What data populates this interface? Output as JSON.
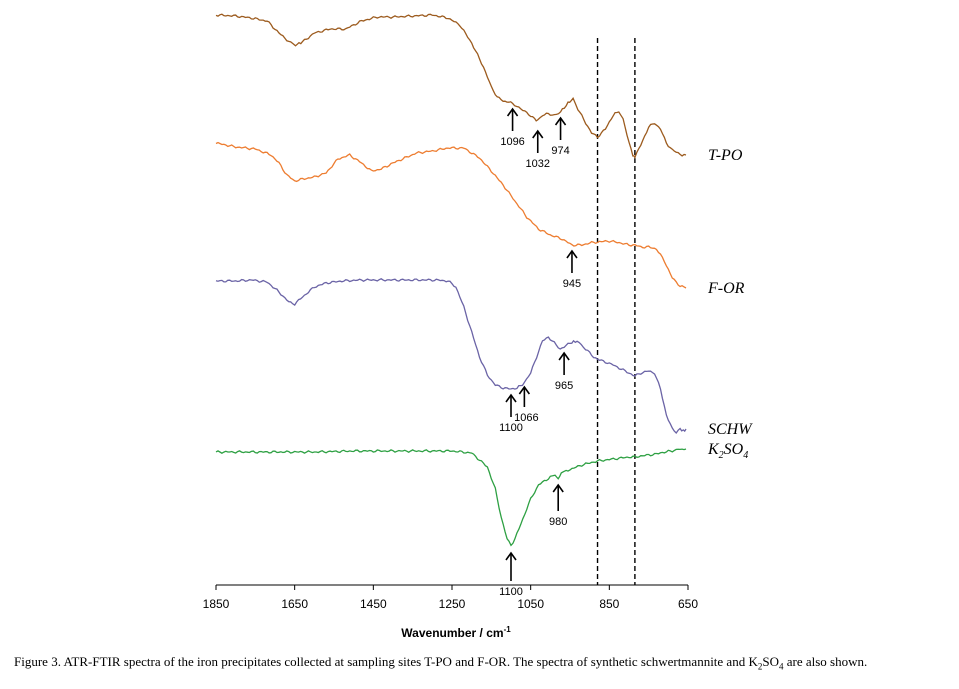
{
  "chart_data": {
    "type": "line",
    "title": "",
    "xlabel": "Wavenumber / cm",
    "xlabel_sup": "-1",
    "ylabel": "",
    "xlim": [
      1850,
      650
    ],
    "x_reversed": true,
    "xticks": [
      1850,
      1650,
      1450,
      1250,
      1050,
      850,
      650
    ],
    "grid": false,
    "reference_lines": [
      880,
      785
    ],
    "series": [
      {
        "name": "T-PO",
        "label_main": "T-PO",
        "label_sub": "",
        "label_tail": "",
        "color": "#9C5B1E",
        "offset": 0,
        "points": [
          [
            1850,
            0
          ],
          [
            1800,
            1
          ],
          [
            1760,
            3
          ],
          [
            1720,
            6
          ],
          [
            1690,
            18
          ],
          [
            1660,
            28
          ],
          [
            1648,
            30
          ],
          [
            1630,
            27
          ],
          [
            1600,
            18
          ],
          [
            1560,
            14
          ],
          [
            1520,
            14
          ],
          [
            1480,
            6
          ],
          [
            1440,
            2
          ],
          [
            1400,
            2
          ],
          [
            1350,
            1
          ],
          [
            1300,
            0
          ],
          [
            1260,
            3
          ],
          [
            1230,
            10
          ],
          [
            1200,
            28
          ],
          [
            1170,
            52
          ],
          [
            1150,
            72
          ],
          [
            1135,
            82
          ],
          [
            1120,
            86
          ],
          [
            1096,
            88
          ],
          [
            1075,
            94
          ],
          [
            1055,
            99
          ],
          [
            1040,
            104
          ],
          [
            1032,
            106
          ],
          [
            1020,
            100
          ],
          [
            1005,
            99
          ],
          [
            990,
            100
          ],
          [
            974,
            97
          ],
          [
            955,
            88
          ],
          [
            942,
            84
          ],
          [
            930,
            94
          ],
          [
            910,
            108
          ],
          [
            895,
            118
          ],
          [
            880,
            122
          ],
          [
            860,
            114
          ],
          [
            840,
            100
          ],
          [
            826,
            96
          ],
          [
            815,
            104
          ],
          [
            800,
            128
          ],
          [
            790,
            140
          ],
          [
            785,
            142
          ],
          [
            770,
            130
          ],
          [
            750,
            112
          ],
          [
            735,
            108
          ],
          [
            720,
            114
          ],
          [
            705,
            128
          ],
          [
            690,
            135
          ],
          [
            675,
            138
          ],
          [
            665,
            140
          ],
          [
            655,
            140
          ]
        ]
      },
      {
        "name": "F-OR",
        "label_main": "F-OR",
        "label_sub": "",
        "label_tail": "",
        "color": "#ED7D31",
        "offset": 128,
        "points": [
          [
            1850,
            0
          ],
          [
            1800,
            4
          ],
          [
            1750,
            6
          ],
          [
            1710,
            12
          ],
          [
            1690,
            20
          ],
          [
            1670,
            32
          ],
          [
            1650,
            38
          ],
          [
            1630,
            36
          ],
          [
            1600,
            34
          ],
          [
            1570,
            30
          ],
          [
            1540,
            16
          ],
          [
            1510,
            12
          ],
          [
            1480,
            20
          ],
          [
            1455,
            28
          ],
          [
            1430,
            26
          ],
          [
            1400,
            20
          ],
          [
            1370,
            15
          ],
          [
            1340,
            10
          ],
          [
            1300,
            8
          ],
          [
            1260,
            5
          ],
          [
            1220,
            5
          ],
          [
            1180,
            15
          ],
          [
            1150,
            28
          ],
          [
            1120,
            42
          ],
          [
            1090,
            58
          ],
          [
            1060,
            74
          ],
          [
            1030,
            86
          ],
          [
            1000,
            92
          ],
          [
            970,
            96
          ],
          [
            945,
            102
          ],
          [
            920,
            102
          ],
          [
            900,
            100
          ],
          [
            880,
            99
          ],
          [
            850,
            98
          ],
          [
            820,
            100
          ],
          [
            800,
            102
          ],
          [
            785,
            102
          ],
          [
            770,
            104
          ],
          [
            750,
            104
          ],
          [
            730,
            106
          ],
          [
            710,
            118
          ],
          [
            690,
            135
          ],
          [
            670,
            143
          ],
          [
            655,
            145
          ]
        ]
      },
      {
        "name": "SCHW",
        "label_main": "SCHW",
        "label_sub": "",
        "label_tail": "",
        "color": "#6B64A6",
        "offset": 252,
        "points": [
          [
            1850,
            14
          ],
          [
            1800,
            14
          ],
          [
            1760,
            13
          ],
          [
            1720,
            15
          ],
          [
            1690,
            25
          ],
          [
            1665,
            35
          ],
          [
            1650,
            37
          ],
          [
            1630,
            30
          ],
          [
            1600,
            20
          ],
          [
            1570,
            16
          ],
          [
            1530,
            14
          ],
          [
            1480,
            13
          ],
          [
            1430,
            13
          ],
          [
            1380,
            13
          ],
          [
            1330,
            13
          ],
          [
            1290,
            13
          ],
          [
            1260,
            14
          ],
          [
            1240,
            20
          ],
          [
            1220,
            40
          ],
          [
            1200,
            65
          ],
          [
            1180,
            90
          ],
          [
            1160,
            108
          ],
          [
            1140,
            118
          ],
          [
            1120,
            121
          ],
          [
            1100,
            122
          ],
          [
            1085,
            121
          ],
          [
            1066,
            116
          ],
          [
            1050,
            106
          ],
          [
            1035,
            90
          ],
          [
            1020,
            74
          ],
          [
            1005,
            70
          ],
          [
            990,
            76
          ],
          [
            975,
            82
          ],
          [
            965,
            80
          ],
          [
            950,
            76
          ],
          [
            932,
            74
          ],
          [
            910,
            82
          ],
          [
            890,
            90
          ],
          [
            875,
            93
          ],
          [
            860,
            95
          ],
          [
            840,
            98
          ],
          [
            820,
            102
          ],
          [
            800,
            106
          ],
          [
            785,
            109
          ],
          [
            770,
            106
          ],
          [
            750,
            104
          ],
          [
            735,
            106
          ],
          [
            720,
            122
          ],
          [
            705,
            148
          ],
          [
            690,
            162
          ],
          [
            680,
            165
          ],
          [
            670,
            162
          ],
          [
            662,
            164
          ],
          [
            655,
            162
          ]
        ]
      },
      {
        "name": "K2SO4",
        "label_main": "K",
        "label_sub": "2",
        "label_tail": "SO",
        "label_sub2": "4",
        "color": "#2EA043",
        "offset": 422,
        "points": [
          [
            1850,
            15
          ],
          [
            1700,
            15
          ],
          [
            1600,
            15
          ],
          [
            1500,
            14
          ],
          [
            1400,
            14
          ],
          [
            1300,
            14
          ],
          [
            1250,
            14
          ],
          [
            1200,
            16
          ],
          [
            1160,
            30
          ],
          [
            1140,
            52
          ],
          [
            1125,
            80
          ],
          [
            1110,
            102
          ],
          [
            1100,
            108
          ],
          [
            1090,
            102
          ],
          [
            1070,
            82
          ],
          [
            1050,
            62
          ],
          [
            1030,
            48
          ],
          [
            1000,
            40
          ],
          [
            988,
            38
          ],
          [
            980,
            42
          ],
          [
            972,
            36
          ],
          [
            960,
            34
          ],
          [
            940,
            31
          ],
          [
            920,
            28
          ],
          [
            900,
            26
          ],
          [
            880,
            24
          ],
          [
            860,
            23
          ],
          [
            840,
            22
          ],
          [
            820,
            21
          ],
          [
            800,
            20
          ],
          [
            785,
            20
          ],
          [
            770,
            19
          ],
          [
            750,
            18
          ],
          [
            730,
            17
          ],
          [
            710,
            15
          ],
          [
            690,
            14
          ],
          [
            675,
            12
          ],
          [
            665,
            13
          ],
          [
            655,
            12
          ]
        ]
      }
    ],
    "annotations": [
      {
        "series": "T-PO",
        "x": 1096,
        "label": "1096",
        "dir": "up"
      },
      {
        "series": "T-PO",
        "x": 1032,
        "label": "1032",
        "dir": "up"
      },
      {
        "series": "T-PO",
        "x": 974,
        "label": "974",
        "dir": "up"
      },
      {
        "series": "F-OR",
        "x": 945,
        "label": "945",
        "dir": "up"
      },
      {
        "series": "SCHW",
        "x": 1100,
        "label": "1100",
        "dir": "up"
      },
      {
        "series": "SCHW",
        "x": 1066,
        "label": "1066",
        "dir": "up"
      },
      {
        "series": "SCHW",
        "x": 965,
        "label": "965",
        "dir": "up"
      },
      {
        "series": "K2SO4",
        "x": 1100,
        "label": "1100",
        "dir": "up"
      },
      {
        "series": "K2SO4",
        "x": 980,
        "label": "980",
        "dir": "up"
      }
    ]
  },
  "caption": {
    "text_before": "Figure 3. ATR-FTIR spectra of the iron precipitates collected at sampling sites T-PO and F-OR. The spectra of synthetic schwertmannite and K",
    "sub1": "2",
    "text_middle": "SO",
    "sub2": "4",
    "text_after": " are also shown."
  }
}
